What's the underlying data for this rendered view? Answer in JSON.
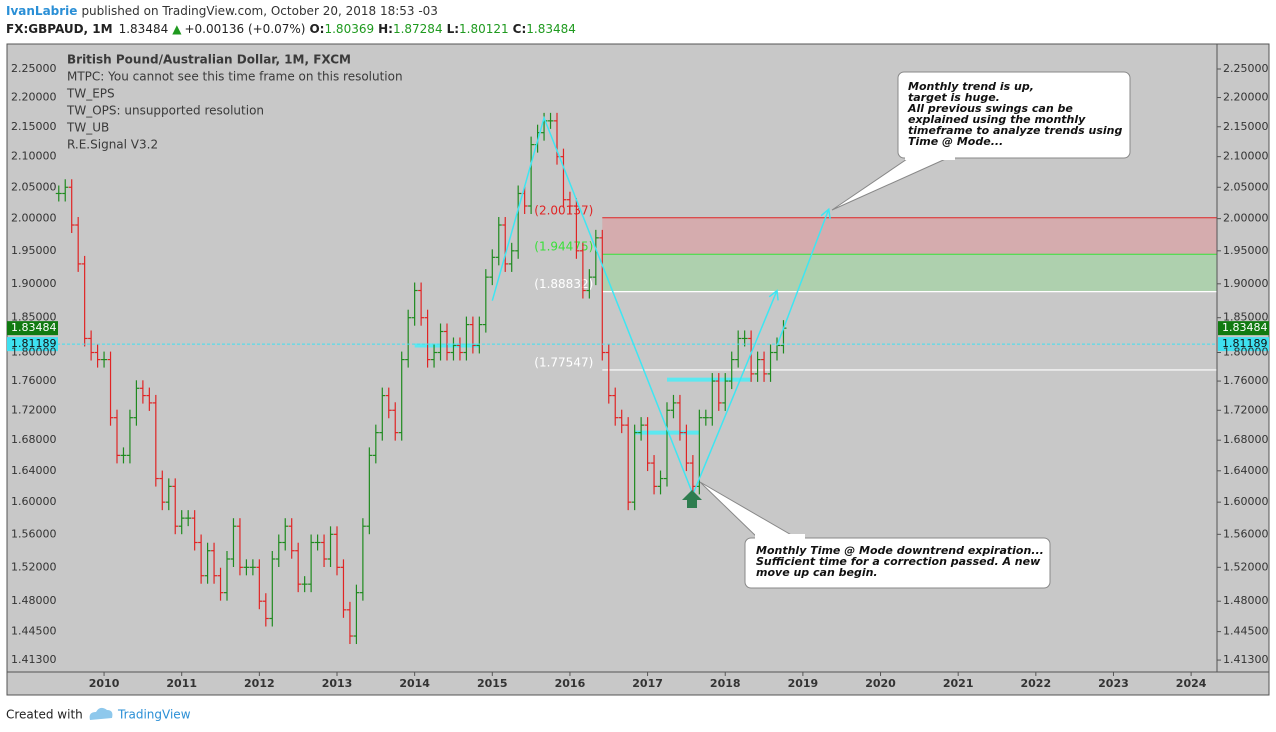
{
  "header": {
    "author": "IvanLabrie",
    "published": "published on TradingView.com, October 20, 2018 18:53 -03",
    "symbol": "FX:GBPAUD, 1M",
    "last": "1.83484",
    "arrow": "▲",
    "change": "+0.00136 (+0.07%)",
    "o_label": "O:",
    "o": "1.80369",
    "h_label": "H:",
    "h": "1.87284",
    "l_label": "L:",
    "l": "1.80121",
    "c_label": "C:",
    "c": "1.83484"
  },
  "legend": [
    "British Pound/Australian Dollar, 1M, FXCM",
    "MTPC: You cannot see this time frame on this resolution",
    "TW_EPS",
    "TW_OPS: unsupported resolution",
    "TW_UB",
    "R.E.Signal V3.2"
  ],
  "footer": {
    "created": "Created with",
    "brand": "TradingView"
  },
  "chart_data": {
    "type": "ohlc",
    "log": true,
    "up_color": "#1f8a1f",
    "down_color": "#e02424",
    "xlim": [
      "2008-10",
      "2024-05"
    ],
    "xticks": [
      "2010",
      "2011",
      "2012",
      "2013",
      "2014",
      "2015",
      "2016",
      "2017",
      "2018",
      "2019",
      "2020",
      "2021",
      "2022",
      "2023",
      "2024"
    ],
    "ylim": [
      1.3998,
      2.2947
    ],
    "yticks": [
      {
        "value": 2.25,
        "label": "2.25000"
      },
      {
        "value": 2.2,
        "label": "2.20000"
      },
      {
        "value": 2.15,
        "label": "2.15000"
      },
      {
        "value": 2.1,
        "label": "2.10000"
      },
      {
        "value": 2.05,
        "label": "2.05000"
      },
      {
        "value": 2.0,
        "label": "2.00000"
      },
      {
        "value": 1.95,
        "label": "1.95000"
      },
      {
        "value": 1.9,
        "label": "1.90000"
      },
      {
        "value": 1.85,
        "label": "1.85000"
      },
      {
        "value": 1.8,
        "label": "1.80000"
      },
      {
        "value": 1.76,
        "label": "1.76000"
      },
      {
        "value": 1.72,
        "label": "1.72000"
      },
      {
        "value": 1.68,
        "label": "1.68000"
      },
      {
        "value": 1.64,
        "label": "1.64000"
      },
      {
        "value": 1.6,
        "label": "1.60000"
      },
      {
        "value": 1.56,
        "label": "1.56000"
      },
      {
        "value": 1.52,
        "label": "1.52000"
      },
      {
        "value": 1.48,
        "label": "1.48000"
      },
      {
        "value": 1.445,
        "label": "1.44500"
      },
      {
        "value": 1.413,
        "label": "1.41300"
      }
    ],
    "x": [
      "2009-06",
      "2009-07",
      "2009-08",
      "2009-09",
      "2009-10",
      "2009-11",
      "2009-12",
      "2010-01",
      "2010-02",
      "2010-03",
      "2010-04",
      "2010-05",
      "2010-06",
      "2010-07",
      "2010-08",
      "2010-09",
      "2010-10",
      "2010-11",
      "2010-12",
      "2011-01",
      "2011-02",
      "2011-03",
      "2011-04",
      "2011-05",
      "2011-06",
      "2011-07",
      "2011-08",
      "2011-09",
      "2011-10",
      "2011-11",
      "2011-12",
      "2012-01",
      "2012-02",
      "2012-03",
      "2012-04",
      "2012-05",
      "2012-06",
      "2012-07",
      "2012-08",
      "2012-09",
      "2012-10",
      "2012-11",
      "2012-12",
      "2013-01",
      "2013-02",
      "2013-03",
      "2013-04",
      "2013-05",
      "2013-06",
      "2013-07",
      "2013-08",
      "2013-09",
      "2013-10",
      "2013-11",
      "2013-12",
      "2014-01",
      "2014-02",
      "2014-03",
      "2014-04",
      "2014-05",
      "2014-06",
      "2014-07",
      "2014-08",
      "2014-09",
      "2014-10",
      "2014-11",
      "2014-12",
      "2015-01",
      "2015-02",
      "2015-03",
      "2015-04",
      "2015-05",
      "2015-06",
      "2015-07",
      "2015-08",
      "2015-09",
      "2015-10",
      "2015-11",
      "2015-12",
      "2016-01",
      "2016-02",
      "2016-03",
      "2016-04",
      "2016-05",
      "2016-06",
      "2016-07",
      "2016-08",
      "2016-09",
      "2016-10",
      "2016-11",
      "2016-12",
      "2017-01",
      "2017-02",
      "2017-03",
      "2017-04",
      "2017-05",
      "2017-06",
      "2017-07",
      "2017-08",
      "2017-09",
      "2017-10",
      "2017-11",
      "2017-12",
      "2018-01",
      "2018-02",
      "2018-03",
      "2018-04",
      "2018-05",
      "2018-06",
      "2018-07",
      "2018-08",
      "2018-09",
      "2018-10"
    ],
    "close": [
      2.04,
      2.05,
      1.99,
      1.93,
      1.82,
      1.8,
      1.79,
      1.79,
      1.71,
      1.66,
      1.66,
      1.71,
      1.75,
      1.74,
      1.73,
      1.63,
      1.6,
      1.62,
      1.57,
      1.58,
      1.58,
      1.55,
      1.51,
      1.54,
      1.51,
      1.49,
      1.53,
      1.57,
      1.52,
      1.52,
      1.52,
      1.48,
      1.46,
      1.53,
      1.55,
      1.57,
      1.54,
      1.5,
      1.5,
      1.55,
      1.55,
      1.53,
      1.56,
      1.52,
      1.47,
      1.44,
      1.49,
      1.57,
      1.66,
      1.69,
      1.74,
      1.72,
      1.69,
      1.79,
      1.85,
      1.89,
      1.85,
      1.79,
      1.8,
      1.83,
      1.8,
      1.81,
      1.8,
      1.84,
      1.81,
      1.84,
      1.91,
      1.94,
      1.99,
      1.93,
      1.95,
      2.04,
      2.02,
      2.12,
      2.14,
      2.16,
      2.16,
      2.1,
      2.03,
      2.02,
      1.95,
      1.89,
      1.91,
      1.97,
      1.8,
      1.74,
      1.71,
      1.7,
      1.6,
      1.69,
      1.7,
      1.65,
      1.62,
      1.63,
      1.72,
      1.73,
      1.69,
      1.65,
      1.62,
      1.71,
      1.71,
      1.76,
      1.73,
      1.76,
      1.79,
      1.82,
      1.82,
      1.77,
      1.79,
      1.77,
      1.8,
      1.81,
      1.83484
    ],
    "zones": [
      {
        "top": {
          "value": 2.00137,
          "label": "(2.00137)"
        },
        "bottom": {
          "value": 1.94475,
          "label": "(1.94475)"
        },
        "from": "2016-06",
        "color": "#d6a9ab",
        "label_color": "#e02424"
      },
      {
        "top": {
          "value": 1.94475,
          "label": "(1.94475)"
        },
        "bottom": {
          "value": 1.88832,
          "label": "(1.88832)"
        },
        "from": "2016-06",
        "color": "#abd0ab",
        "label_color": "#39e039"
      }
    ],
    "lines": [
      {
        "value": 1.88832,
        "label": "(1.88832)",
        "from": "2016-06"
      },
      {
        "value": 1.77547,
        "label": "(1.77547)",
        "from": "2016-06"
      }
    ],
    "price_tags": [
      {
        "value": 1.83484,
        "label": "1.83484",
        "color": "#117a11"
      },
      {
        "value": 1.81189,
        "label": "1.81189",
        "color": "#3ee0f0"
      }
    ],
    "trendlines": [
      {
        "x": [
          "2015-01",
          "2015-09",
          "2017-08",
          "2018-09"
        ],
        "y": [
          1.875,
          2.165,
          1.61,
          1.89
        ]
      },
      {
        "x": [
          "2018-09",
          "2019-05"
        ],
        "y": [
          1.81,
          2.015
        ]
      }
    ],
    "levels": [
      {
        "from": "2014-01",
        "to": "2014-11",
        "value": 1.81
      },
      {
        "from": "2016-11",
        "to": "2017-09",
        "value": 1.69
      },
      {
        "from": "2017-04",
        "to": "2018-05",
        "value": 1.762
      }
    ],
    "annotations": [
      [
        "Monthly trend is up,",
        "target is huge.",
        "All previous swings can be",
        "explained using the monthly",
        "timeframe to analyze trends using",
        "Time @ Mode..."
      ],
      [
        "Monthly Time @ Mode downtrend expiration...",
        "Sufficient time for a correction passed. A new",
        "move up can begin."
      ]
    ]
  }
}
